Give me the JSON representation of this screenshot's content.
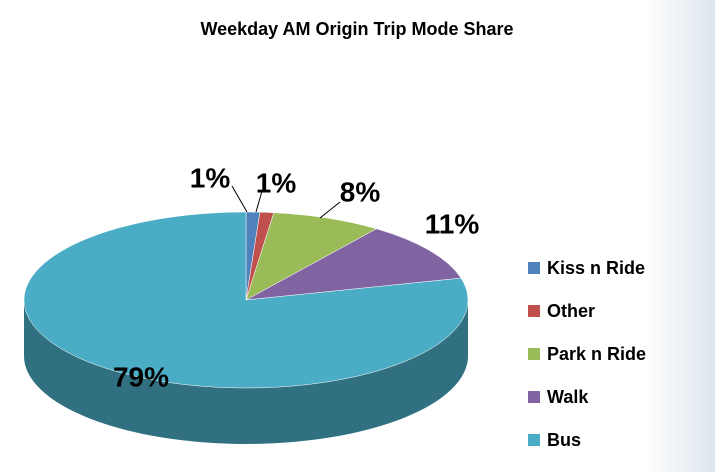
{
  "chart_data": {
    "type": "pie",
    "title": "Weekday AM Origin Trip Mode Share",
    "categories": [
      "Kiss n Ride",
      "Other",
      "Park n Ride",
      "Walk",
      "Bus"
    ],
    "values": [
      1,
      1,
      8,
      11,
      79
    ],
    "value_labels": [
      "1%",
      "1%",
      "8%",
      "11%",
      "79%"
    ],
    "colors": [
      "#4f81bd",
      "#c0504d",
      "#9bbb59",
      "#8064a2",
      "#4bacc6"
    ],
    "legend": "right"
  }
}
